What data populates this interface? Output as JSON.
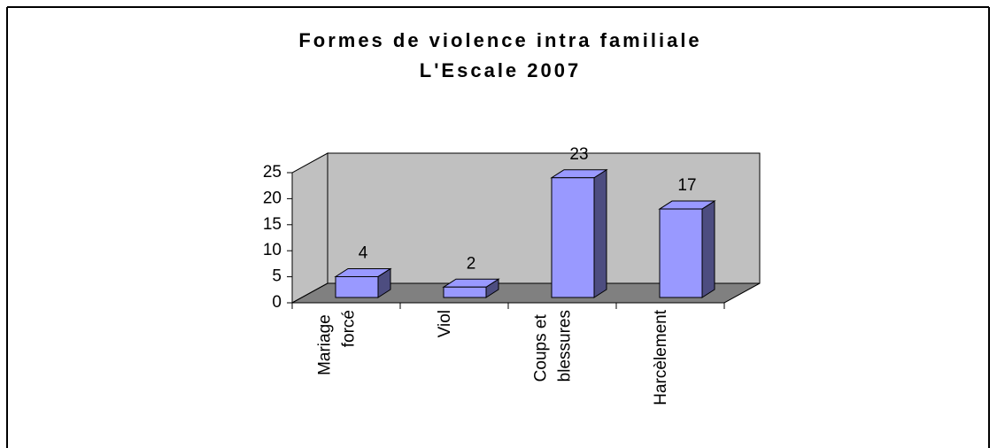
{
  "chart_data": {
    "type": "bar3d",
    "title": [
      "Formes de violence intra familiale",
      "L'Escale 2007"
    ],
    "categories": [
      "Mariage forcé",
      "Viol",
      "Coups et blessures",
      "Harcèlement"
    ],
    "values": [
      4,
      2,
      23,
      17
    ],
    "color": "#9999ff",
    "ylim": [
      0,
      25
    ],
    "yticks": [
      0,
      5,
      10,
      15,
      20,
      25
    ]
  }
}
